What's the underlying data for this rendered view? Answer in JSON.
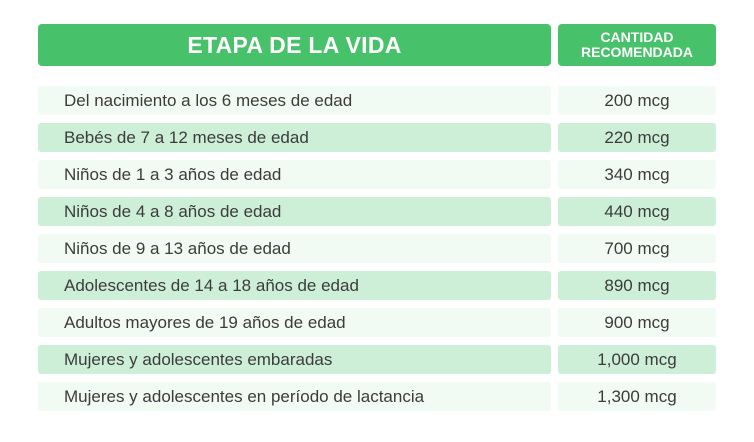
{
  "table": {
    "header": {
      "stage": "ETAPA DE LA VIDA",
      "amount_line1": "CANTIDAD",
      "amount_line2": "RECOMENDADA"
    },
    "rows": [
      {
        "stage": "Del nacimiento a los 6 meses de edad",
        "amount": "200 mcg"
      },
      {
        "stage": "Bebés de 7 a 12 meses de edad",
        "amount": "220 mcg"
      },
      {
        "stage": "Niños de 1 a 3 años de edad",
        "amount": "340 mcg"
      },
      {
        "stage": "Niños de 4 a 8 años de edad",
        "amount": "440 mcg"
      },
      {
        "stage": "Niños de 9 a 13 años de edad",
        "amount": "700 mcg"
      },
      {
        "stage": "Adolescentes de 14 a 18 años de edad",
        "amount": "890 mcg"
      },
      {
        "stage": "Adultos mayores de 19 años de edad",
        "amount": "900 mcg"
      },
      {
        "stage": "Mujeres y adolescentes embaradas",
        "amount": "1,000 mcg"
      },
      {
        "stage": "Mujeres y adolescentes en período de lactancia",
        "amount": "1,300 mcg"
      }
    ],
    "colors": {
      "header": "#47c16a",
      "row_light": "#f1faf3",
      "row_dark": "#cdeed7",
      "text": "#3c3c3c"
    }
  }
}
